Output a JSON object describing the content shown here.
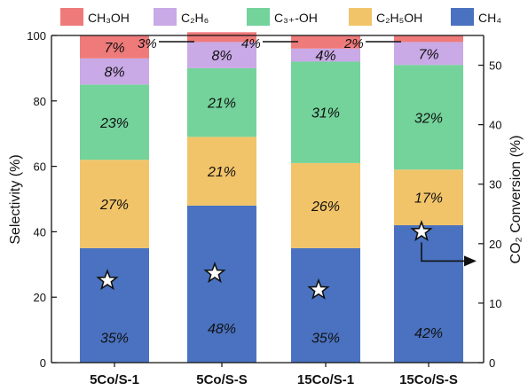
{
  "chart_data": {
    "type": "bar",
    "stacked": true,
    "categories": [
      "5Co/S-1",
      "5Co/S-S",
      "15Co/S-1",
      "15Co/S-S"
    ],
    "series": [
      {
        "name": "CH₄",
        "color": "#4a72c0",
        "values": [
          35,
          48,
          35,
          42
        ],
        "labels": [
          "35%",
          "48%",
          "35%",
          "42%"
        ]
      },
      {
        "name": "C₂H₅OH",
        "color": "#f2c469",
        "values": [
          27,
          21,
          26,
          17
        ],
        "labels": [
          "27%",
          "21%",
          "26%",
          "17%"
        ]
      },
      {
        "name": "C₃₊-OH",
        "color": "#73d39b",
        "values": [
          23,
          21,
          31,
          32
        ],
        "labels": [
          "23%",
          "21%",
          "31%",
          "32%"
        ]
      },
      {
        "name": "C₂H₆",
        "color": "#c9a9e6",
        "values": [
          8,
          8,
          4,
          7
        ],
        "labels": [
          "8%",
          "8%",
          "4%",
          "7%"
        ]
      },
      {
        "name": "CH₃OH",
        "color": "#ef7a7a",
        "values": [
          7,
          3,
          4,
          2
        ],
        "labels": [
          "7%",
          "3%",
          "4%",
          "2%"
        ]
      }
    ],
    "legend_order": [
      "CH₃OH",
      "C₂H₆",
      "C₃₊-OH",
      "C₂H₅OH",
      "CH₄"
    ],
    "legend_position": "top",
    "left_axis": {
      "label": "Selectivity (%)",
      "ylim": [
        0,
        100
      ],
      "ticks": [
        "0",
        "20",
        "40",
        "60",
        "80",
        "100"
      ]
    },
    "right_axis": {
      "label": "CO₂ Conversion (%)",
      "ylim": [
        0,
        55
      ],
      "ticks": [
        "0",
        "10",
        "20",
        "30",
        "40",
        "50"
      ]
    },
    "co2_conversion": {
      "marker": "star",
      "values": [
        13.8,
        15.0,
        12.2,
        22.0
      ]
    },
    "grid": false
  }
}
